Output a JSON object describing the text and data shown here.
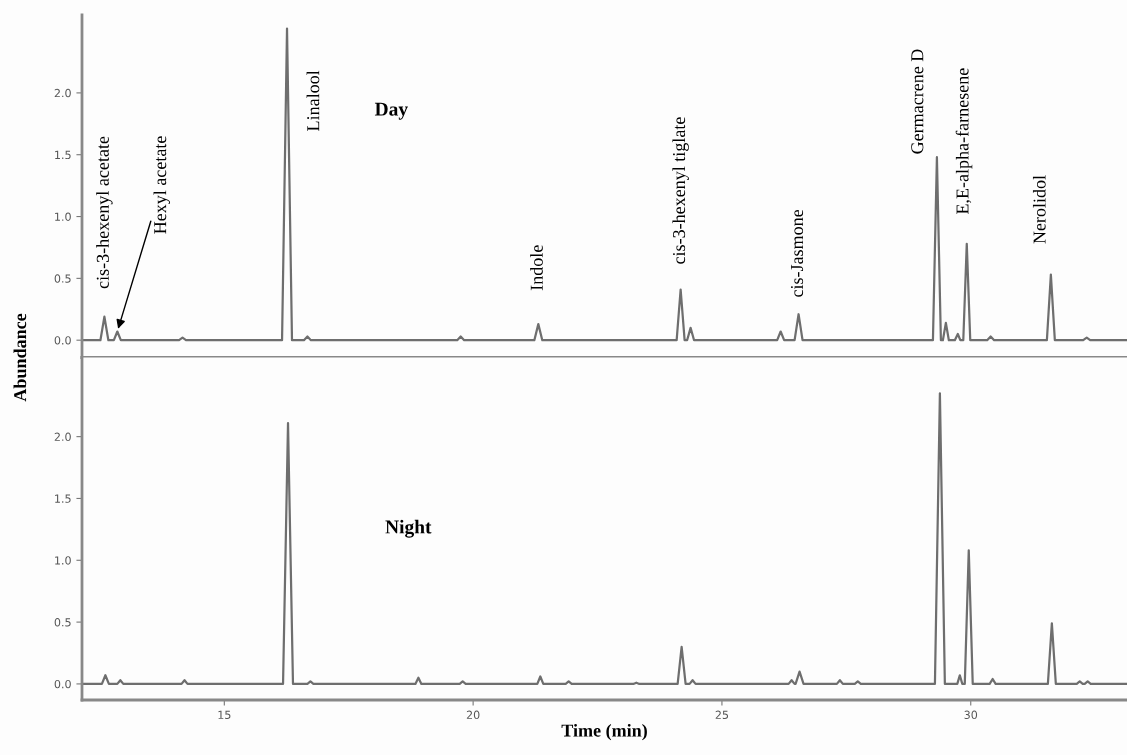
{
  "chart_data": [
    {
      "type": "line",
      "title": "Day",
      "ylabel": "Abundance",
      "xlim": [
        12.14,
        33.14
      ],
      "ylim": [
        -0.14,
        2.63
      ],
      "yticks": [
        {
          "value": 0,
          "label": "0.0"
        },
        {
          "value": 0.5,
          "label": "0.5"
        },
        {
          "value": 1,
          "label": "1.0"
        },
        {
          "value": 1.5,
          "label": "1.5"
        },
        {
          "value": 2,
          "label": "2.0"
        }
      ],
      "tick_labels": "y",
      "grid": false,
      "legend": false,
      "series": [
        {
          "color": "#6e6e6e",
          "x": [
            12.14,
            12.51,
            12.59,
            12.67,
            12.78,
            12.85,
            12.92,
            14.09,
            14.16,
            14.23,
            16.16,
            16.26,
            16.36,
            16.6,
            16.67,
            16.74,
            19.68,
            19.75,
            19.82,
            21.23,
            21.31,
            21.39,
            24.09,
            24.17,
            24.25,
            24.3,
            24.37,
            24.44,
            26.11,
            26.18,
            26.25,
            26.46,
            26.54,
            26.62,
            29.24,
            29.32,
            29.4,
            29.44,
            29.5,
            29.56,
            29.68,
            29.74,
            29.79,
            29.85,
            29.92,
            29.99,
            30.33,
            30.4,
            30.47,
            31.53,
            31.61,
            31.69,
            32.26,
            32.33,
            32.4,
            33.14
          ],
          "values": [
            0,
            0,
            0.19,
            0,
            0,
            0.07,
            0,
            0,
            0.02,
            0,
            0,
            2.52,
            0,
            0,
            0.03,
            0,
            0,
            0.03,
            0,
            0,
            0.13,
            0,
            0,
            0.41,
            0,
            0,
            0.1,
            0,
            0,
            0.07,
            0,
            0,
            0.21,
            0,
            0,
            1.48,
            0,
            0,
            0.14,
            0,
            0,
            0.05,
            0,
            0,
            0.78,
            0,
            0,
            0.03,
            0,
            0,
            0.53,
            0,
            0,
            0.02,
            0,
            0
          ]
        }
      ],
      "annotations": [
        {
          "text": "cis-3-hexenyl acetate",
          "x": 12.59,
          "y": 0.19
        },
        {
          "text": "Hexyl acetate",
          "x": 12.85,
          "y": 0.07
        },
        {
          "text": "Linalool",
          "x": 16.26,
          "y": 2.52
        },
        {
          "text": "Indole",
          "x": 21.31,
          "y": 0.13
        },
        {
          "text": "cis-3-hexenyl tiglate",
          "x": 24.17,
          "y": 0.41
        },
        {
          "text": "cis-Jasmone",
          "x": 26.54,
          "y": 0.21
        },
        {
          "text": "Germacrene D",
          "x": 29.32,
          "y": 1.48
        },
        {
          "text": "E,E-alpha-farnesene",
          "x": 29.92,
          "y": 0.78
        },
        {
          "text": "Nerolidol",
          "x": 31.61,
          "y": 0.53
        }
      ]
    },
    {
      "type": "line",
      "title": "Night",
      "xlabel": "Time (min)",
      "xlim": [
        12.14,
        33.14
      ],
      "ylim": [
        -0.13,
        2.64
      ],
      "xticks": [
        15,
        20,
        25,
        30
      ],
      "yticks": [
        {
          "value": 0,
          "label": "0.0"
        },
        {
          "value": 0.5,
          "label": "0.5"
        },
        {
          "value": 1,
          "label": "1.0"
        },
        {
          "value": 1.5,
          "label": "1.5"
        },
        {
          "value": 2,
          "label": "2.0"
        }
      ],
      "grid": false,
      "legend": false,
      "series": [
        {
          "color": "#6e6e6e",
          "x": [
            12.14,
            12.54,
            12.61,
            12.68,
            12.85,
            12.91,
            12.97,
            14.14,
            14.2,
            14.26,
            16.18,
            16.28,
            16.38,
            16.67,
            16.73,
            16.79,
            18.84,
            18.9,
            18.96,
            19.73,
            19.79,
            19.85,
            21.29,
            21.35,
            21.41,
            21.86,
            21.92,
            21.98,
            23.22,
            23.28,
            23.34,
            24.11,
            24.19,
            24.27,
            24.35,
            24.41,
            24.47,
            26.34,
            26.4,
            26.46,
            26.48,
            26.56,
            26.64,
            27.31,
            27.37,
            27.43,
            27.67,
            27.73,
            27.79,
            29.28,
            29.38,
            29.48,
            29.73,
            29.78,
            29.83,
            29.88,
            29.96,
            30.04,
            30.38,
            30.44,
            30.5,
            31.55,
            31.63,
            31.71,
            32.13,
            32.19,
            32.25,
            32.29,
            32.35,
            32.41,
            33.14
          ],
          "values": [
            0,
            0,
            0.07,
            0,
            0,
            0.03,
            0,
            0,
            0.03,
            0,
            0,
            2.11,
            0,
            0,
            0.02,
            0,
            0,
            0.05,
            0,
            0,
            0.02,
            0,
            0,
            0.06,
            0,
            0,
            0.02,
            0,
            0,
            0.01,
            0,
            0,
            0.3,
            0,
            0,
            0.03,
            0,
            0,
            0.03,
            0,
            0,
            0.1,
            0,
            0,
            0.03,
            0,
            0,
            0.02,
            0,
            0,
            2.35,
            0,
            0,
            0.07,
            0,
            0,
            1.08,
            0,
            0,
            0.04,
            0,
            0,
            0.49,
            0,
            0,
            0.02,
            0,
            0,
            0.02,
            0,
            0
          ]
        }
      ]
    }
  ]
}
